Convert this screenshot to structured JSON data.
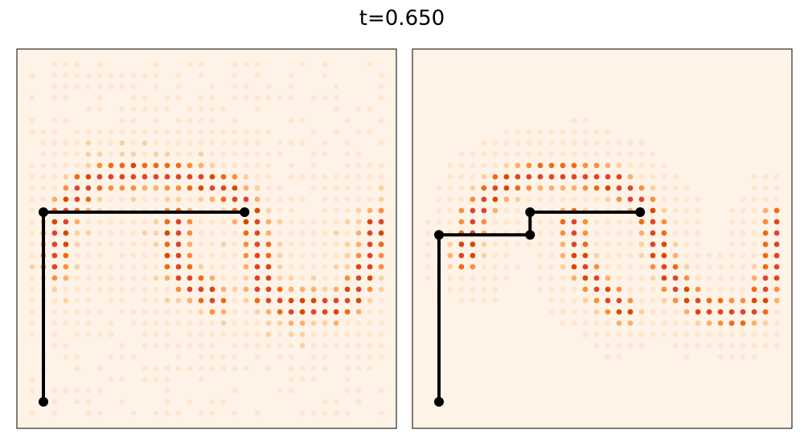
{
  "title": "t=0.650",
  "colors": {
    "background": "#fef3e6",
    "cmap": [
      "#fff5eb",
      "#fee6ce",
      "#fdd0a2",
      "#fdae6b",
      "#fd8d3c",
      "#f16913",
      "#d94801",
      "#e0432b"
    ],
    "path": "#000000"
  },
  "chart_data": [
    {
      "type": "scatter",
      "panel": "left",
      "title": "",
      "xlabel": "",
      "ylabel": "",
      "axis_ticks": false,
      "grid_n": 32,
      "path": [
        [
          0.07,
          0.43
        ],
        [
          0.6,
          0.43
        ],
        [
          0.07,
          0.43
        ],
        [
          0.07,
          0.93
        ]
      ],
      "path_nodes": [
        [
          0.07,
          0.43
        ],
        [
          0.6,
          0.43
        ],
        [
          0.07,
          0.93
        ]
      ],
      "curve": [
        [
          0.1,
          0.57
        ],
        [
          0.12,
          0.44
        ],
        [
          0.18,
          0.36
        ],
        [
          0.25,
          0.33
        ],
        [
          0.36,
          0.33
        ],
        [
          0.46,
          0.34
        ],
        [
          0.56,
          0.37
        ],
        [
          0.62,
          0.44
        ],
        [
          0.64,
          0.55
        ],
        [
          0.65,
          0.64
        ],
        [
          0.72,
          0.68
        ],
        [
          0.84,
          0.68
        ],
        [
          0.88,
          0.66
        ],
        [
          0.92,
          0.58
        ],
        [
          0.95,
          0.46
        ]
      ],
      "inner_segment": [
        [
          0.42,
          0.45
        ],
        [
          0.42,
          0.57
        ],
        [
          0.46,
          0.62
        ],
        [
          0.52,
          0.66
        ]
      ],
      "noise": 0.22
    },
    {
      "type": "scatter",
      "panel": "right",
      "title": "",
      "xlabel": "",
      "ylabel": "",
      "axis_ticks": false,
      "grid_n": 32,
      "path": [
        [
          0.07,
          0.49
        ],
        [
          0.31,
          0.49
        ],
        [
          0.31,
          0.43
        ],
        [
          0.6,
          0.43
        ]
      ],
      "path_nodes": [
        [
          0.07,
          0.49
        ],
        [
          0.31,
          0.49
        ],
        [
          0.31,
          0.43
        ],
        [
          0.6,
          0.43
        ],
        [
          0.07,
          0.93
        ]
      ],
      "path2": [
        [
          0.07,
          0.49
        ],
        [
          0.07,
          0.93
        ]
      ],
      "curve": [
        [
          0.14,
          0.55
        ],
        [
          0.16,
          0.44
        ],
        [
          0.23,
          0.36
        ],
        [
          0.33,
          0.33
        ],
        [
          0.43,
          0.33
        ],
        [
          0.53,
          0.35
        ],
        [
          0.6,
          0.4
        ],
        [
          0.64,
          0.47
        ],
        [
          0.65,
          0.55
        ],
        [
          0.7,
          0.63
        ],
        [
          0.76,
          0.68
        ],
        [
          0.86,
          0.7
        ],
        [
          0.91,
          0.68
        ],
        [
          0.95,
          0.58
        ],
        [
          0.96,
          0.45
        ]
      ],
      "inner_segment": [
        [
          0.42,
          0.45
        ],
        [
          0.44,
          0.56
        ],
        [
          0.5,
          0.64
        ],
        [
          0.56,
          0.69
        ]
      ],
      "noise": 0.05
    }
  ]
}
